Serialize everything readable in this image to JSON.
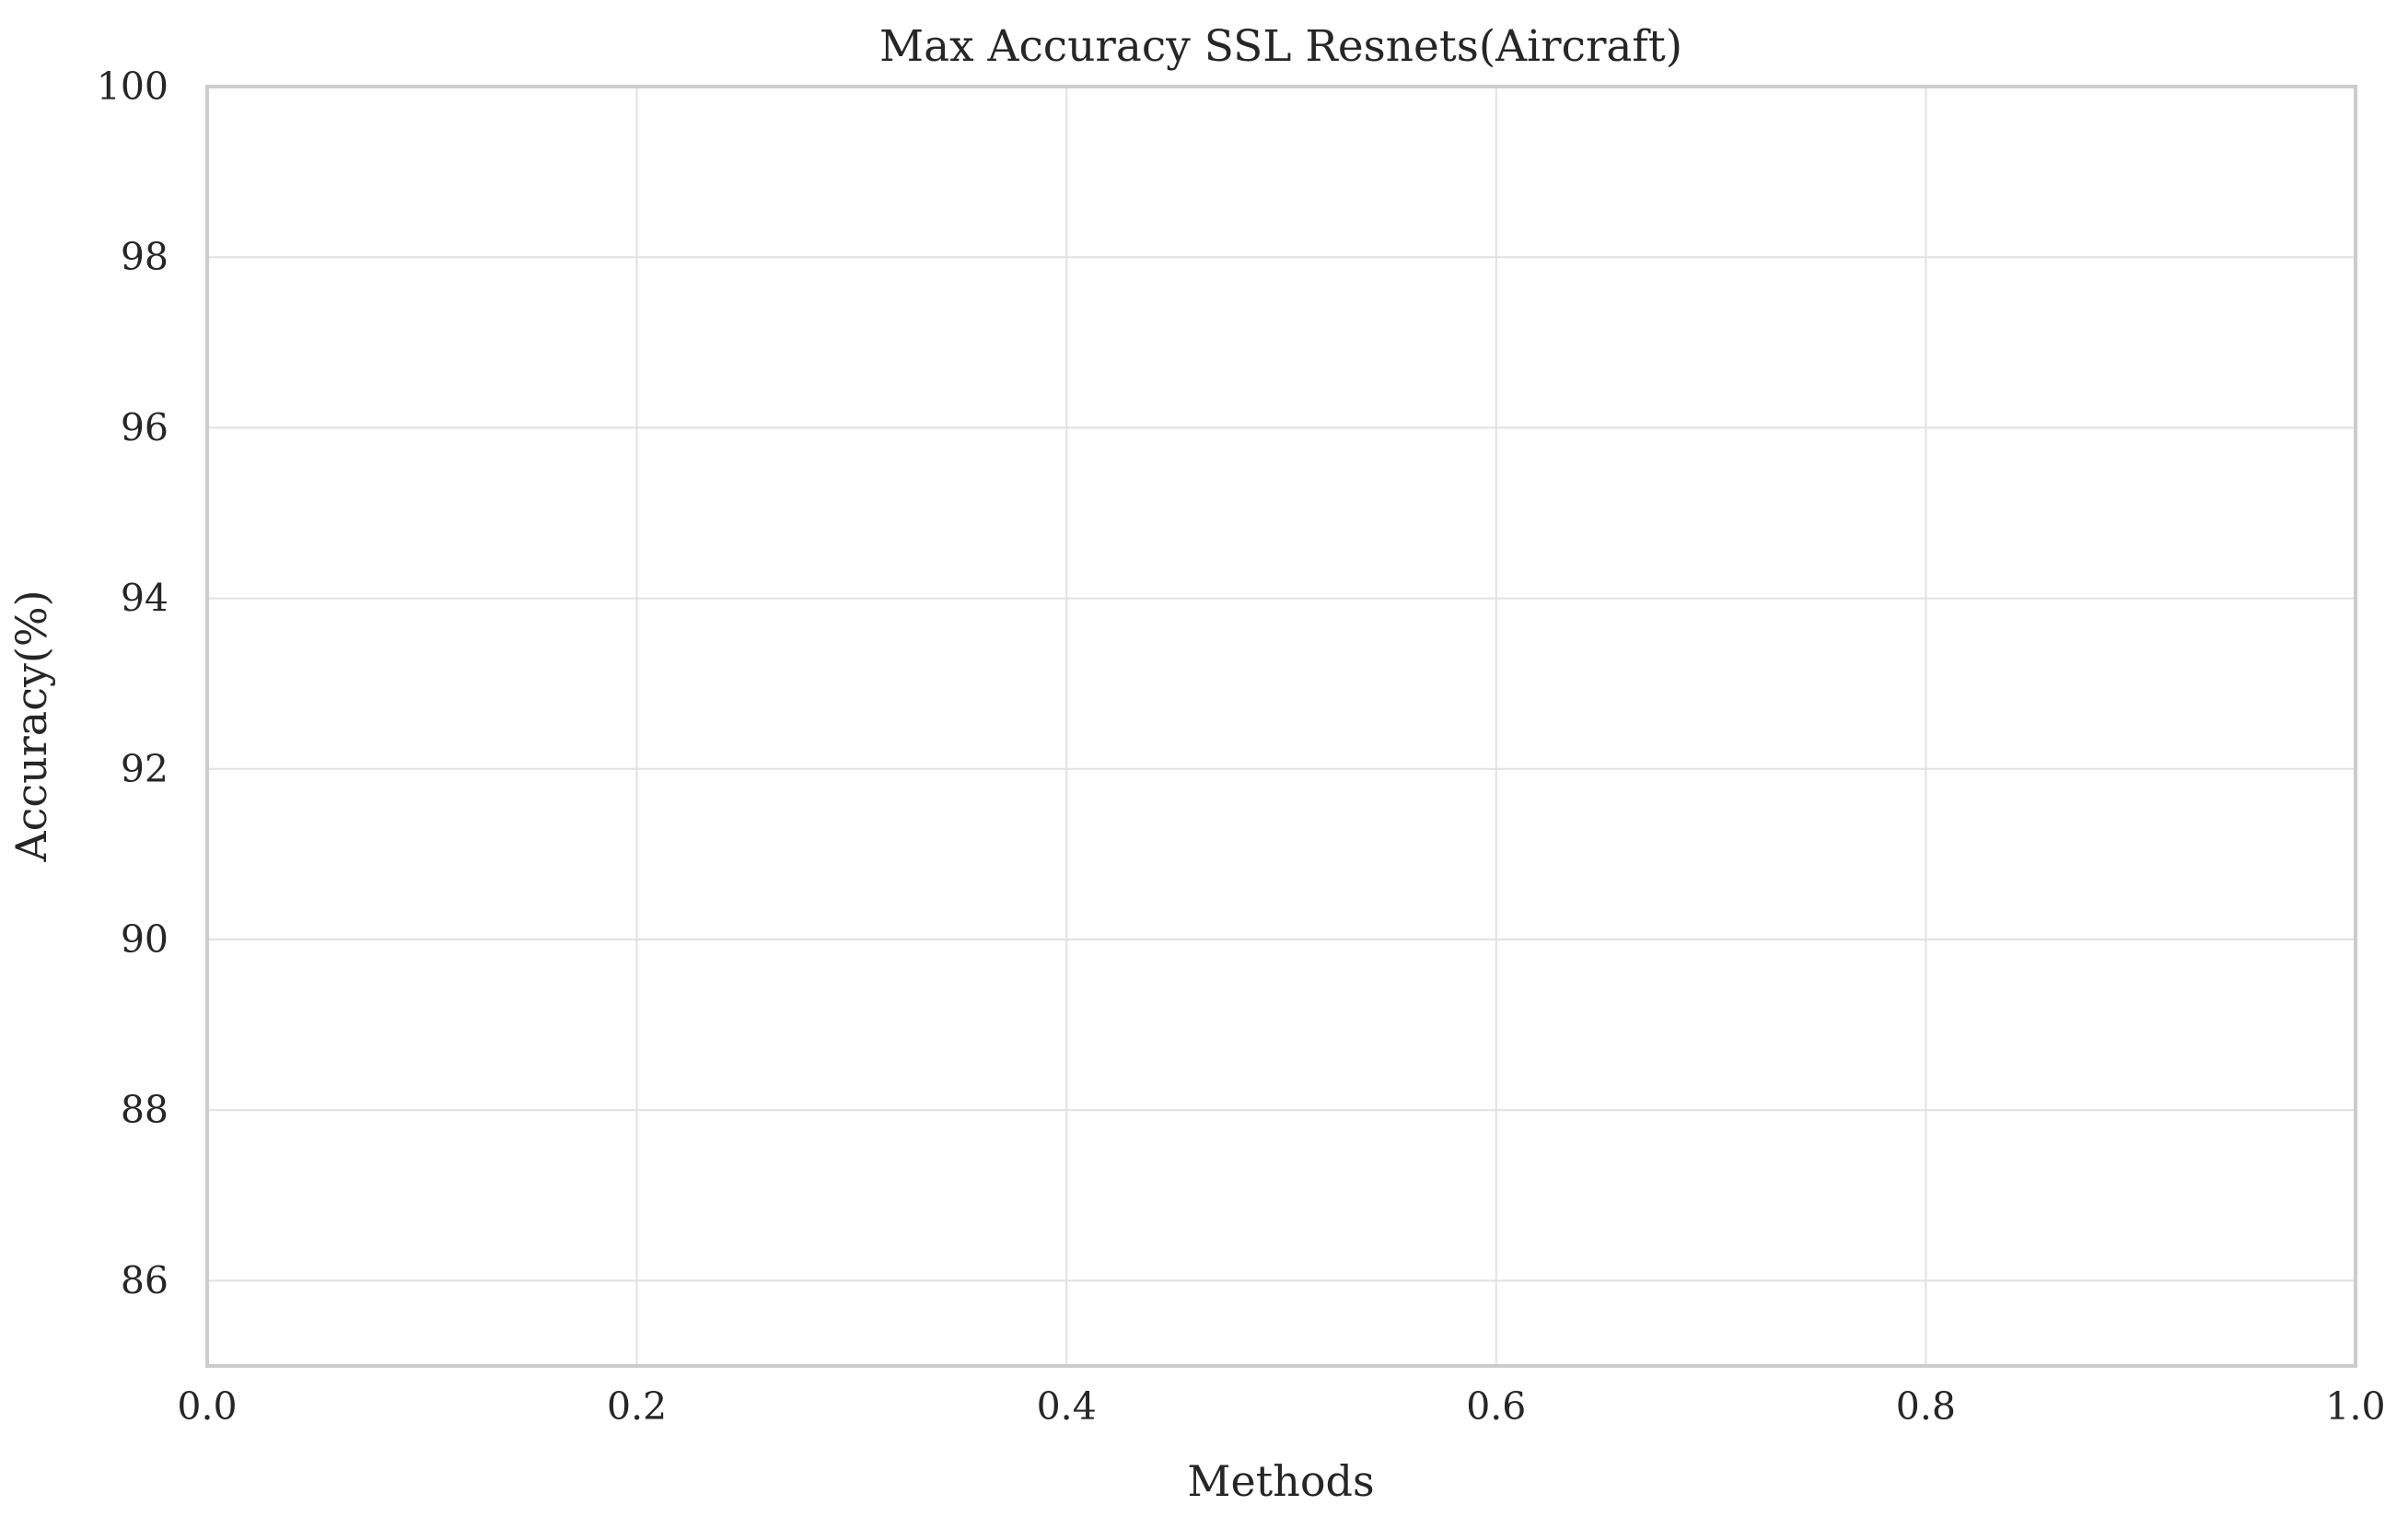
{
  "chart_data": {
    "type": "bar",
    "title": "Max Accuracy SSL Resnets(Aircraft)",
    "xlabel": "Methods",
    "ylabel": "Accuracy(%)",
    "xlim": [
      0.0,
      1.0
    ],
    "ylim": [
      85,
      100
    ],
    "x_ticks": [
      "0.0",
      "0.2",
      "0.4",
      "0.6",
      "0.8",
      "1.0"
    ],
    "x_tick_values": [
      0.0,
      0.2,
      0.4,
      0.6,
      0.8,
      1.0
    ],
    "y_ticks": [
      "86",
      "88",
      "90",
      "92",
      "94",
      "96",
      "98",
      "100"
    ],
    "y_tick_values": [
      86,
      88,
      90,
      92,
      94,
      96,
      98,
      100
    ],
    "categories": [],
    "values": [],
    "grid": true
  }
}
